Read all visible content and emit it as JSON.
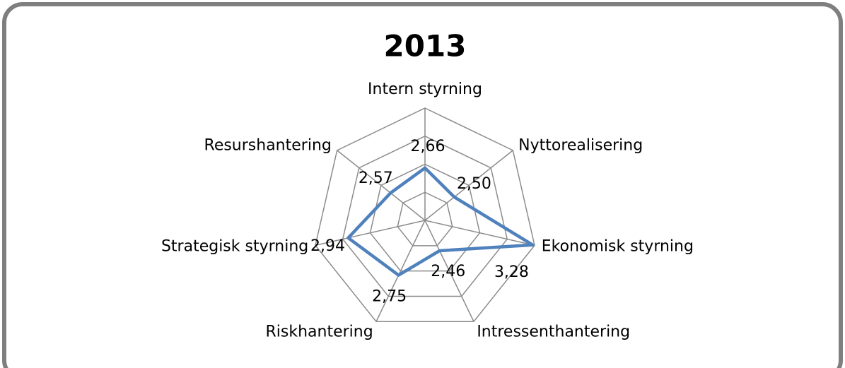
{
  "chart_data": {
    "type": "radar",
    "title": "2013",
    "categories": [
      "Intern styrning",
      "Nyttorealisering",
      "Ekonomisk styrning",
      "Intressenthantering",
      "Riskhantering",
      "Strategisk styrning",
      "Resurshantering"
    ],
    "series": [
      {
        "name": "2013",
        "color": "#4f81bd",
        "values": [
          2.66,
          2.5,
          3.28,
          2.46,
          2.75,
          2.94,
          2.57
        ],
        "value_labels": [
          "2,66",
          "2,50",
          "3,28",
          "2,46",
          "2,75",
          "2,94",
          "2,57"
        ]
      }
    ],
    "ylim": [
      2.1,
      3.3
    ],
    "yticks": [
      2.1,
      2.4,
      2.7,
      3.0,
      3.3
    ],
    "grid": true
  }
}
